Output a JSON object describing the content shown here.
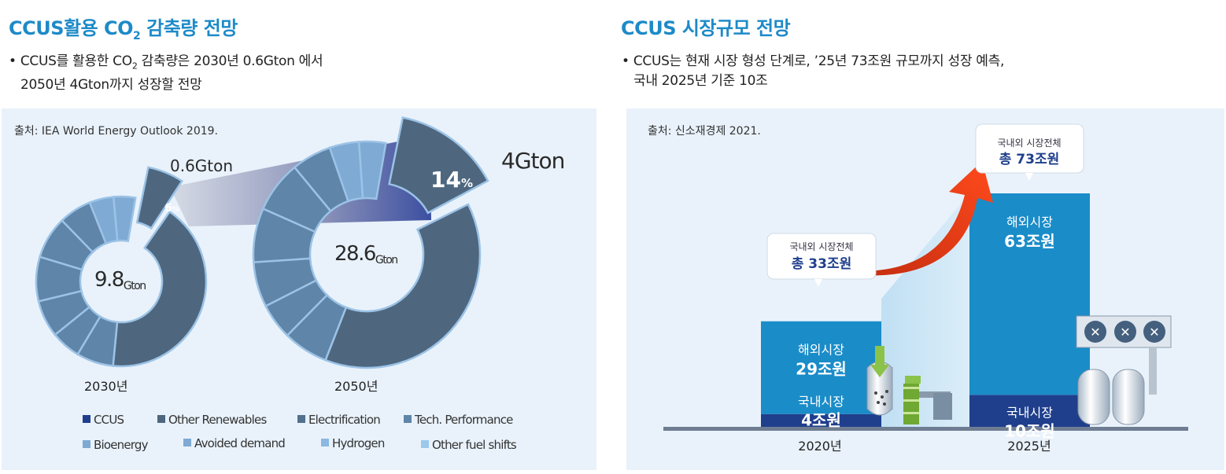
{
  "left": {
    "title_main": "CCUS활용 CO",
    "title_sub": "2",
    "title_tail": " 감축량 전망",
    "bullet_line1_a": "• CCUS를 활용한 CO",
    "bullet_line1_sub": "2",
    "bullet_line1_b": " 감축량은 2030년 0.6Gton 에서",
    "bullet_line2": "2050년 4Gton까지 성장할 전망",
    "source": "출처: IEA World Energy Outlook 2019."
  },
  "right": {
    "title": "CCUS 시장규모 전망",
    "bullet_line1": "• CCUS는 현재 시장 형성 단계로, ’25년 73조원 규모까지 성장 예측,",
    "bullet_line2": "국내 2025년 기준 10조",
    "source": "출처: 신소재경제 2021."
  },
  "colors": {
    "title": "#1d8ac8",
    "panel": "#e9f2fb",
    "ccus": "#4e677f",
    "ring_mid": "#5f85a8",
    "ring_light": "#7eaad4",
    "overseas": "#1a8cc8",
    "domestic": "#1f3f8c",
    "arrow": "#e8401c"
  },
  "chart_data": [
    {
      "type": "donut",
      "title": "",
      "center_values": [
        {
          "year": "2030년",
          "total": "9.8",
          "unit": "Gton",
          "ccus_label": "0.6Gton",
          "ccus_pct": "6",
          "pct_unit": "%"
        },
        {
          "year": "2050년",
          "total": "28.6",
          "unit": "Gton",
          "ccus_label": "4Gton",
          "ccus_pct": "14",
          "pct_unit": "%"
        }
      ],
      "series": [
        {
          "year": "2030",
          "total": 9.8,
          "ccus_share": 0.06
        },
        {
          "year": "2050",
          "total": 28.6,
          "ccus_share": 0.14
        }
      ],
      "legend": [
        "CCUS",
        "Other Renewables",
        "Electrification",
        "Tech. Performance",
        "Bioenergy",
        "Avoided demand",
        "Hydrogen",
        "Other fuel shifts"
      ]
    },
    {
      "type": "bar",
      "categories": [
        "2020년",
        "2025년"
      ],
      "series": [
        {
          "name": "국내시장",
          "values": [
            4,
            10
          ]
        },
        {
          "name": "해외시장",
          "values": [
            29,
            63
          ]
        }
      ],
      "stack_totals": [
        33,
        73
      ],
      "labels": {
        "domestic_name": "국내시장",
        "overseas_name": "해외시장",
        "domestic_values": [
          "4조원",
          "10조원"
        ],
        "overseas_values": [
          "29조원",
          "63조원"
        ],
        "callout_title": "국내외 시장전체",
        "callout_totals": [
          "총 33조원",
          "총 73조원"
        ]
      }
    }
  ]
}
